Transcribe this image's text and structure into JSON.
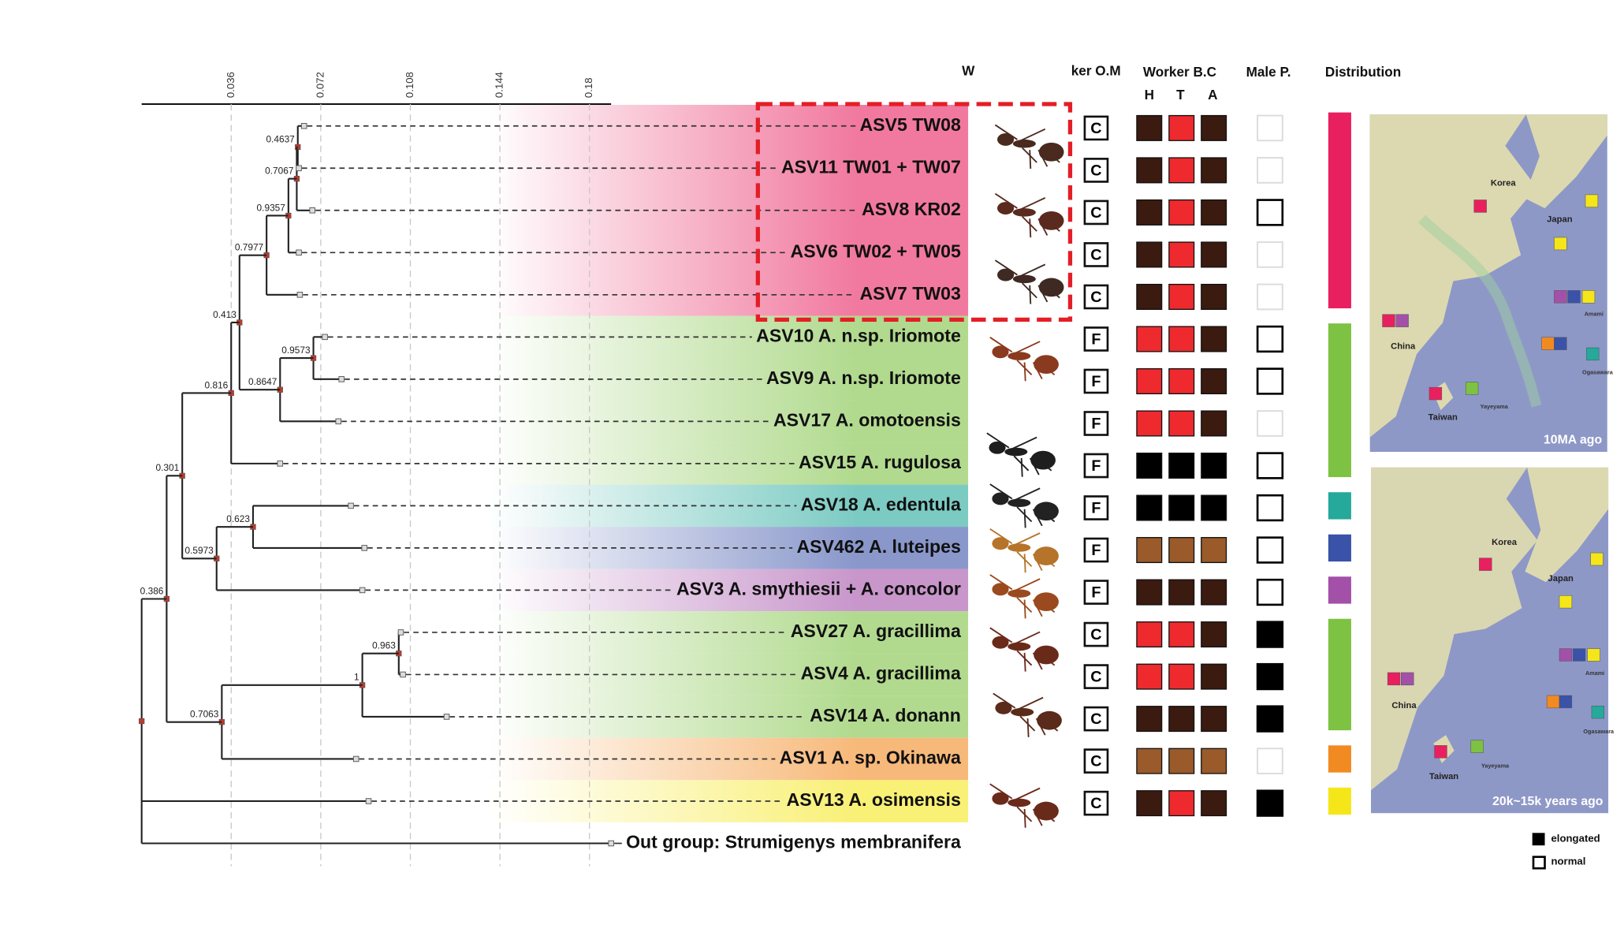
{
  "scale": {
    "ticks": [
      0.036,
      0.072,
      0.108,
      0.144,
      0.18
    ]
  },
  "tree": {
    "support": [
      "0.4637",
      "0.7067",
      "0.9357",
      "0.7977",
      "0.9573",
      "0.8647",
      "0.413",
      "0.816",
      "0.623",
      "0.5973",
      "0.301",
      "0.963",
      "1",
      "0.7063",
      "0.386"
    ],
    "taxa": [
      "ASV5 TW08",
      "ASV11 TW01 + TW07",
      "ASV8 KR02",
      "ASV6 TW02 + TW05",
      "ASV7 TW03",
      "ASV10 A. n.sp. Iriomote",
      "ASV9 A. n.sp. Iriomote",
      "ASV17 A. omotoensis",
      "ASV15 A. rugulosa",
      "ASV18 A. edentula",
      "ASV462 A. luteipes",
      "ASV3 A. smythiesii + A. concolor",
      "ASV27 A. gracillima",
      "ASV4 A. gracillima",
      "ASV14 A. donann",
      "ASV1 A. sp. Okinawa",
      "ASV13 A. osimensis",
      "Out group: Strumigenys membranifera"
    ]
  },
  "columns": {
    "worker": "W",
    "worker_om": "ker O.M",
    "worker_bc": "Worker B.C",
    "bc_parts": [
      "H",
      "T",
      "A"
    ],
    "male_p": "Male P.",
    "distribution": "Distribution"
  },
  "rows": [
    {
      "om": "C",
      "bc": [
        "#3b1a10",
        "#ee2a2e",
        "#3b1a10"
      ],
      "male": null,
      "group": "#e8205f"
    },
    {
      "om": "C",
      "bc": [
        "#3b1a10",
        "#ee2a2e",
        "#3b1a10"
      ],
      "male": null,
      "group": "#e8205f"
    },
    {
      "om": "C",
      "bc": [
        "#3b1a10",
        "#ee2a2e",
        "#3b1a10"
      ],
      "male": "normal",
      "group": "#e8205f"
    },
    {
      "om": "C",
      "bc": [
        "#3b1a10",
        "#ee2a2e",
        "#3b1a10"
      ],
      "male": null,
      "group": "#e8205f"
    },
    {
      "om": "C",
      "bc": [
        "#3b1a10",
        "#ee2a2e",
        "#3b1a10"
      ],
      "male": null,
      "group": "#e8205f"
    },
    {
      "om": "F",
      "bc": [
        "#ee2a2e",
        "#ee2a2e",
        "#3b1a10"
      ],
      "male": "normal",
      "group": "#7dc242"
    },
    {
      "om": "F",
      "bc": [
        "#ee2a2e",
        "#ee2a2e",
        "#3b1a10"
      ],
      "male": "normal",
      "group": "#7dc242"
    },
    {
      "om": "F",
      "bc": [
        "#ee2a2e",
        "#ee2a2e",
        "#3b1a10"
      ],
      "male": null,
      "group": "#7dc242"
    },
    {
      "om": "F",
      "bc": [
        "#000000",
        "#000000",
        "#000000"
      ],
      "male": "normal",
      "group": "#7dc242"
    },
    {
      "om": "F",
      "bc": [
        "#000000",
        "#000000",
        "#000000"
      ],
      "male": "normal",
      "group": "#25a99b"
    },
    {
      "om": "F",
      "bc": [
        "#9a5a2a",
        "#9a5a2a",
        "#9a5a2a"
      ],
      "male": "normal",
      "group": "#3a52a8"
    },
    {
      "om": "F",
      "bc": [
        "#3b1a10",
        "#3b1a10",
        "#3b1a10"
      ],
      "male": "normal",
      "group": "#a350a8"
    },
    {
      "om": "C",
      "bc": [
        "#ee2a2e",
        "#ee2a2e",
        "#3b1a10"
      ],
      "male": "elongated",
      "group": "#7dc242"
    },
    {
      "om": "C",
      "bc": [
        "#ee2a2e",
        "#ee2a2e",
        "#3b1a10"
      ],
      "male": "elongated",
      "group": "#7dc242"
    },
    {
      "om": "C",
      "bc": [
        "#3b1a10",
        "#3b1a10",
        "#3b1a10"
      ],
      "male": "elongated",
      "group": "#7dc242"
    },
    {
      "om": "C",
      "bc": [
        "#9a5a2a",
        "#9a5a2a",
        "#9a5a2a"
      ],
      "male": null,
      "group": "#f28a22"
    },
    {
      "om": "C",
      "bc": [
        "#3b1a10",
        "#ee2a2e",
        "#3b1a10"
      ],
      "male": "elongated",
      "group": "#f5e61a"
    }
  ],
  "maps": [
    {
      "caption": "10MA ago",
      "labels": [
        "Korea",
        "Japan",
        "China",
        "Taiwan",
        "Yayeyama",
        "Amami",
        "Ogasawara"
      ]
    },
    {
      "caption": "20k~15k years ago",
      "labels": [
        "Korea",
        "Japan",
        "China",
        "Taiwan",
        "Yayeyama",
        "Amami",
        "Ogasawara"
      ]
    }
  ],
  "legend": [
    "elongated",
    "normal"
  ]
}
